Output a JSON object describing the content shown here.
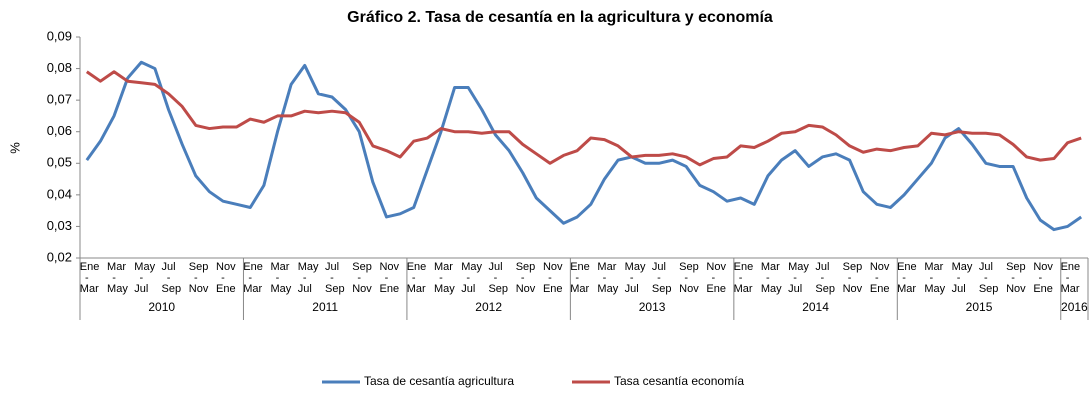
{
  "chart_data": {
    "type": "line",
    "title": "Gráfico 2. Tasa de cesantía en la agricultura y economía",
    "y_label": "%",
    "categories": [
      "Ene - Mar",
      null,
      "Mar - May",
      null,
      "May - Jul",
      null,
      "Jul - Sep",
      null,
      "Sep - Nov",
      null,
      "Nov - Ene",
      null,
      "Ene - Mar",
      null,
      "Mar - May",
      null,
      "May - Jul",
      null,
      "Jul - Sep",
      null,
      "Sep - Nov",
      null,
      "Nov - Ene",
      null,
      "Ene - Mar",
      null,
      "Mar - May",
      null,
      "May - Jul",
      null,
      "Jul - Sep",
      null,
      "Sep - Nov",
      null,
      "Nov - Ene",
      null,
      "Ene - Mar",
      null,
      "Mar - May",
      null,
      "May - Jul",
      null,
      "Jul - Sep",
      null,
      "Sep - Nov",
      null,
      "Nov - Ene",
      null,
      "Ene - Mar",
      null,
      "Mar - May",
      null,
      "May - Jul",
      null,
      "Jul - Sep",
      null,
      "Sep - Nov",
      null,
      "Nov - Ene",
      null,
      "Ene - Mar",
      null,
      "Mar - May",
      null,
      "May - Jul",
      null,
      "Jul - Sep",
      null,
      "Sep - Nov",
      null,
      "Nov - Ene",
      null,
      "Ene - Mar",
      null
    ],
    "x_groups": [
      "2010",
      "2011",
      "2012",
      "2013",
      "2014",
      "2015",
      "2016"
    ],
    "series": [
      {
        "name": "Tasa de cesantía agricultura",
        "color": "#4a7ebb",
        "values": [
          0.051,
          0.057,
          0.065,
          0.077,
          0.082,
          0.08,
          0.067,
          0.056,
          0.046,
          0.041,
          0.038,
          0.037,
          0.036,
          0.043,
          0.06,
          0.075,
          0.081,
          0.072,
          0.071,
          0.067,
          0.06,
          0.044,
          0.033,
          0.034,
          0.036,
          0.048,
          0.06,
          0.074,
          0.074,
          0.067,
          0.059,
          0.054,
          0.047,
          0.039,
          0.035,
          0.031,
          0.033,
          0.037,
          0.045,
          0.051,
          0.052,
          0.05,
          0.05,
          0.051,
          0.049,
          0.043,
          0.041,
          0.038,
          0.039,
          0.037,
          0.046,
          0.051,
          0.054,
          0.049,
          0.052,
          0.053,
          0.051,
          0.041,
          0.037,
          0.036,
          0.04,
          0.045,
          0.05,
          0.058,
          0.061,
          0.056,
          0.05,
          0.049,
          0.049,
          0.039,
          0.032,
          0.029,
          0.03,
          0.033
        ]
      },
      {
        "name": "Tasa cesantía economía",
        "color": "#be4b48",
        "values": [
          0.079,
          0.076,
          0.079,
          0.076,
          0.0755,
          0.075,
          0.072,
          0.068,
          0.062,
          0.061,
          0.0615,
          0.0615,
          0.064,
          0.063,
          0.065,
          0.065,
          0.0665,
          0.066,
          0.0665,
          0.066,
          0.063,
          0.0555,
          0.054,
          0.052,
          0.057,
          0.058,
          0.061,
          0.06,
          0.06,
          0.0595,
          0.06,
          0.06,
          0.056,
          0.053,
          0.05,
          0.0525,
          0.054,
          0.058,
          0.0575,
          0.0555,
          0.052,
          0.0525,
          0.0525,
          0.053,
          0.052,
          0.0495,
          0.0515,
          0.052,
          0.0555,
          0.055,
          0.057,
          0.0595,
          0.06,
          0.062,
          0.0615,
          0.059,
          0.0555,
          0.0535,
          0.0545,
          0.054,
          0.055,
          0.0555,
          0.0595,
          0.059,
          0.06,
          0.0595,
          0.0595,
          0.059,
          0.056,
          0.052,
          0.051,
          0.0515,
          0.0565,
          0.058
        ]
      }
    ],
    "ylim": [
      0.02,
      0.09
    ],
    "yticks": [
      {
        "value": 0.02,
        "label": "0,02"
      },
      {
        "value": 0.03,
        "label": "0,03"
      },
      {
        "value": 0.04,
        "label": "0,04"
      },
      {
        "value": 0.05,
        "label": "0,05"
      },
      {
        "value": 0.06,
        "label": "0,06"
      },
      {
        "value": 0.07,
        "label": "0,07"
      },
      {
        "value": 0.08,
        "label": "0,08"
      },
      {
        "value": 0.09,
        "label": "0,09"
      }
    ],
    "legend": "bottom"
  }
}
